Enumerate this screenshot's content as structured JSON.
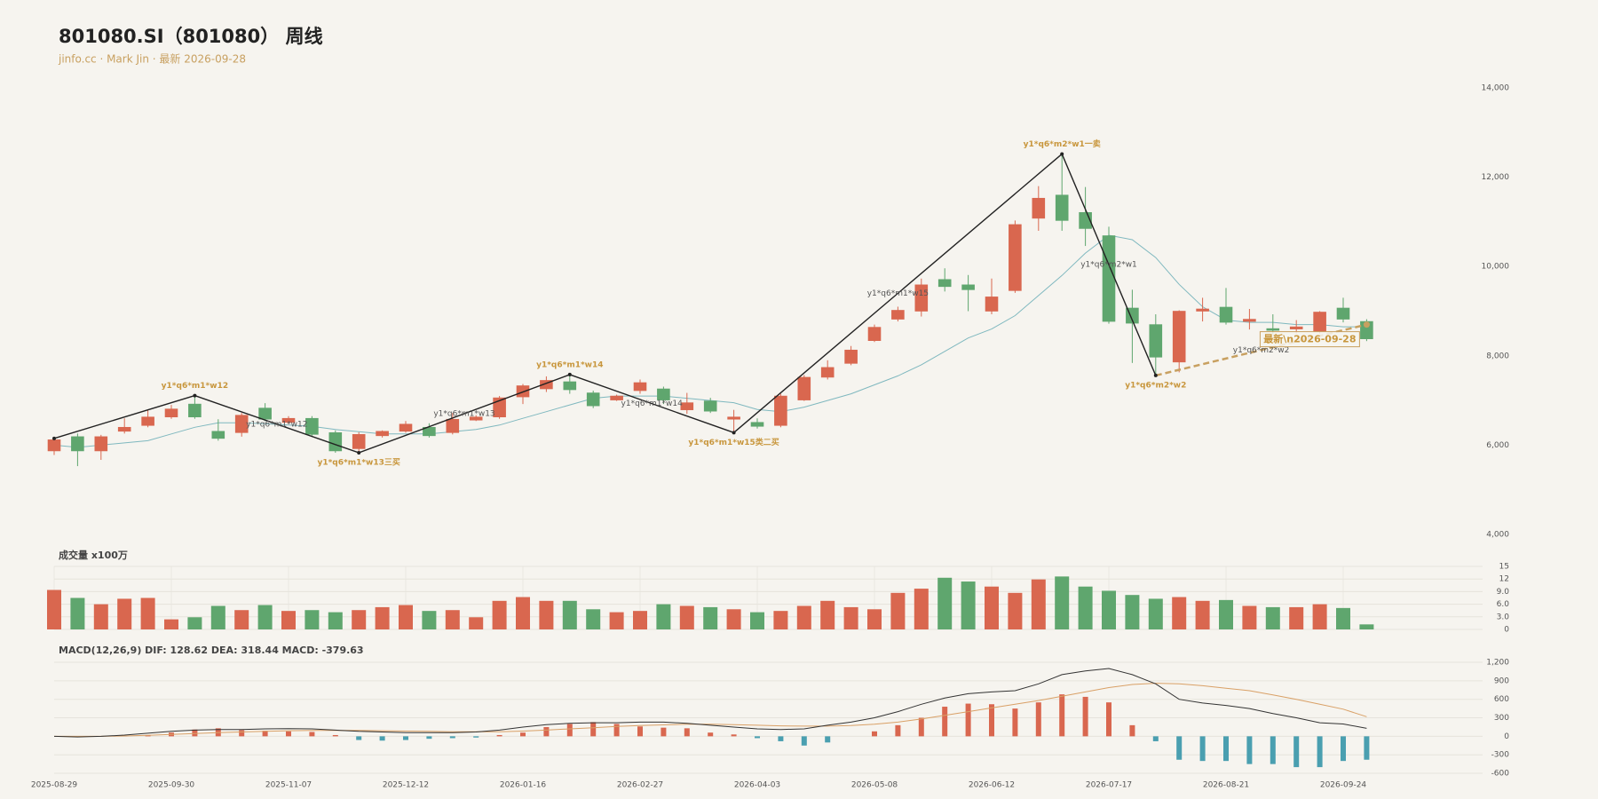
{
  "chart_data": [
    {
      "type": "candlestick",
      "title": "801080.SI（801080） 周线",
      "subtitle": "jinfo.cc · Mark Jin · 最新 2026-09-28",
      "up_color": "#d9674f",
      "down_color": "#5fa66e",
      "open": [
        5870,
        6190,
        5870,
        6310,
        6440,
        6630,
        6920,
        6310,
        6280,
        6830,
        6510,
        6600,
        6280,
        5920,
        6210,
        6310,
        6400,
        6280,
        6560,
        6630,
        7080,
        7260,
        7420,
        7170,
        7010,
        7220,
        7260,
        6790,
        6990,
        6580,
        6510,
        6440,
        7010,
        7520,
        7830,
        8340,
        8820,
        9000,
        9710,
        9590,
        9000,
        9460,
        11080,
        11600,
        11210,
        10690,
        9070,
        8700,
        7860,
        9000,
        9090,
        8770,
        8610,
        8600,
        8550,
        9070,
        8770
      ],
      "high": [
        6190,
        6260,
        6230,
        6600,
        6790,
        6900,
        7110,
        6580,
        6720,
        6940,
        6650,
        6650,
        6330,
        6290,
        6330,
        6540,
        6490,
        6720,
        6670,
        7100,
        7370,
        7540,
        7580,
        7220,
        7130,
        7470,
        7310,
        7170,
        7060,
        6790,
        6600,
        7150,
        7570,
        7900,
        8220,
        8700,
        9100,
        9730,
        9960,
        9810,
        9730,
        11030,
        11800,
        12520,
        11780,
        10890,
        9480,
        8930,
        9020,
        9300,
        9520,
        9050,
        8930,
        8800,
        9000,
        9300,
        8820
      ],
      "low": [
        5780,
        5530,
        5670,
        6260,
        6400,
        6590,
        6590,
        6100,
        6190,
        6540,
        6470,
        6190,
        5830,
        5830,
        6170,
        6280,
        6170,
        6240,
        6540,
        6590,
        6920,
        7190,
        7150,
        6830,
        6990,
        7150,
        6920,
        6700,
        6720,
        6280,
        6370,
        6400,
        6990,
        7470,
        7790,
        8310,
        8770,
        8880,
        9440,
        9000,
        8930,
        9410,
        10800,
        10800,
        10460,
        8720,
        7840,
        7560,
        7630,
        8770,
        8700,
        8590,
        8480,
        8500,
        8500,
        8750,
        8330
      ],
      "close": [
        6120,
        5870,
        6190,
        6400,
        6630,
        6810,
        6630,
        6150,
        6670,
        6580,
        6600,
        6240,
        5870,
        6240,
        6310,
        6470,
        6210,
        6580,
        6630,
        7060,
        7330,
        7450,
        7240,
        6880,
        7100,
        7400,
        7010,
        6950,
        6760,
        6630,
        6420,
        7100,
        7520,
        7740,
        8130,
        8640,
        9020,
        9590,
        9550,
        9480,
        9320,
        10940,
        11530,
        11030,
        10850,
        8770,
        8730,
        7970,
        9000,
        9050,
        8750,
        8820,
        8570,
        8650,
        8980,
        8820,
        8380
      ],
      "ma": {
        "color": "#7fb8bf",
        "values": [
          6000,
          5950,
          6000,
          6050,
          6100,
          6250,
          6400,
          6500,
          6500,
          6480,
          6450,
          6420,
          6350,
          6300,
          6250,
          6250,
          6250,
          6300,
          6350,
          6450,
          6600,
          6750,
          6900,
          7050,
          7100,
          7100,
          7100,
          7050,
          7000,
          6950,
          6800,
          6750,
          6850,
          7000,
          7150,
          7350,
          7550,
          7800,
          8100,
          8400,
          8600,
          8900,
          9350,
          9800,
          10300,
          10700,
          10600,
          10200,
          9600,
          9100,
          8800,
          8750,
          8750,
          8700,
          8700,
          8650,
          8650
        ]
      },
      "zigzag": {
        "color": "#222222",
        "dashed_color": "#c8a060",
        "last_segment_dashed": true,
        "points": [
          {
            "x": 0,
            "y": 6150
          },
          {
            "x": 6,
            "y": 7110
          },
          {
            "x": 13,
            "y": 5830
          },
          {
            "x": 22,
            "y": 7580
          },
          {
            "x": 29,
            "y": 6280
          },
          {
            "x": 43,
            "y": 12520
          },
          {
            "x": 47,
            "y": 7560
          },
          {
            "x": 56,
            "y": 8700
          }
        ],
        "point_labels": [
          null,
          "y1*q6*m1*w12",
          "y1*q6*m1*w13三买",
          "y1*q6*m1*w14",
          "y1*q6*m1*w15类二买",
          "y1*q6*m2*w1一卖",
          "y1*q6*m2*w2",
          null
        ],
        "segment_labels": [
          null,
          "y1*q6*m1*w12",
          "y1*q6*m1*w13",
          "y1*q6*m1*w14",
          "y1*q6*m1*w15",
          "y1*q6*m2*w1",
          "y1*q6*m2*w2"
        ],
        "latest_label": "最新\\n2026-09-28"
      },
      "ylim": [
        4000,
        14000
      ],
      "yticks": [
        {
          "value": 4000,
          "label": "4,000"
        },
        {
          "value": 6000,
          "label": "6,000"
        },
        {
          "value": 8000,
          "label": "8,000"
        },
        {
          "value": 10000,
          "label": "10,000"
        },
        {
          "value": 12000,
          "label": "12,000"
        },
        {
          "value": 14000,
          "label": "14,000"
        }
      ]
    },
    {
      "type": "bar",
      "title": "成交量 x100万",
      "values": [
        9.4,
        7.5,
        6.0,
        7.3,
        7.5,
        2.4,
        2.9,
        5.6,
        4.6,
        5.8,
        4.4,
        4.6,
        4.1,
        4.6,
        5.3,
        5.8,
        4.4,
        4.6,
        2.9,
        6.8,
        7.7,
        6.8,
        6.8,
        4.8,
        4.1,
        4.4,
        6.0,
        5.6,
        5.3,
        4.8,
        4.1,
        4.4,
        5.6,
        6.8,
        5.3,
        4.8,
        8.7,
        9.7,
        12.3,
        11.4,
        10.2,
        8.7,
        11.9,
        12.6,
        10.2,
        9.2,
        8.2,
        7.3,
        7.7,
        6.8,
        7.0,
        5.6,
        5.3,
        5.3,
        6.0,
        5.1,
        1.2
      ],
      "ylim": [
        0,
        15
      ],
      "yticks": [
        0,
        {
          "value": 3,
          "label": "3.0"
        },
        {
          "value": 6,
          "label": "6.0"
        },
        {
          "value": 9,
          "label": "9.0"
        },
        12,
        15
      ],
      "grid": true
    },
    {
      "type": "macd",
      "title": "MACD(12,26,9) DIF: 128.62 DEA: 318.44 MACD: -379.63",
      "categories": [
        "2025-08-29",
        null,
        null,
        null,
        null,
        "2025-09-30",
        null,
        null,
        null,
        null,
        "2025-11-07",
        null,
        null,
        null,
        null,
        "2025-12-12",
        null,
        null,
        null,
        null,
        "2026-01-16",
        null,
        null,
        null,
        null,
        "2026-02-27",
        null,
        null,
        null,
        null,
        "2026-04-03",
        null,
        null,
        null,
        null,
        "2026-05-08",
        null,
        null,
        null,
        null,
        "2026-06-12",
        null,
        null,
        null,
        null,
        "2026-07-17",
        null,
        null,
        null,
        null,
        "2026-08-21",
        null,
        null,
        null,
        null,
        "2026-09-24",
        null
      ],
      "dif": {
        "color": "#333333",
        "values": [
          0,
          -10,
          0,
          20,
          50,
          80,
          100,
          110,
          110,
          120,
          125,
          120,
          100,
          80,
          70,
          60,
          60,
          60,
          70,
          100,
          150,
          190,
          210,
          220,
          220,
          230,
          230,
          210,
          180,
          150,
          120,
          110,
          120,
          180,
          230,
          300,
          400,
          520,
          620,
          690,
          720,
          740,
          850,
          1000,
          1060,
          1100,
          1000,
          850,
          600,
          540,
          500,
          450,
          370,
          300,
          220,
          200,
          128.62
        ]
      },
      "dea": {
        "color": "#d9a066",
        "values": [
          0,
          0,
          0,
          5,
          15,
          30,
          45,
          60,
          70,
          80,
          90,
          95,
          95,
          95,
          90,
          85,
          80,
          75,
          75,
          75,
          85,
          100,
          120,
          140,
          160,
          175,
          185,
          195,
          195,
          190,
          180,
          170,
          165,
          165,
          175,
          195,
          230,
          280,
          340,
          400,
          460,
          520,
          580,
          650,
          720,
          790,
          840,
          860,
          850,
          820,
          780,
          740,
          670,
          600,
          520,
          440,
          318.44
        ]
      },
      "macd": {
        "pos_color": "#d9674f",
        "neg_color": "#4a9fb0",
        "values": [
          0,
          -15,
          -5,
          10,
          20,
          60,
          110,
          130,
          100,
          90,
          80,
          70,
          20,
          -60,
          -70,
          -60,
          -40,
          -30,
          -20,
          20,
          60,
          150,
          200,
          230,
          200,
          160,
          140,
          130,
          60,
          30,
          -30,
          -80,
          -150,
          -100,
          0,
          80,
          180,
          300,
          480,
          530,
          520,
          450,
          550,
          680,
          640,
          550,
          180,
          -80,
          -380,
          -400,
          -400,
          -450,
          -450,
          -500,
          -500,
          -400,
          -379.63
        ]
      },
      "ylim": [
        -700,
        1350
      ],
      "yticks": [
        -600,
        -300,
        0,
        300,
        600,
        900,
        {
          "value": 1200,
          "label": "1,200"
        }
      ],
      "grid": true
    }
  ]
}
